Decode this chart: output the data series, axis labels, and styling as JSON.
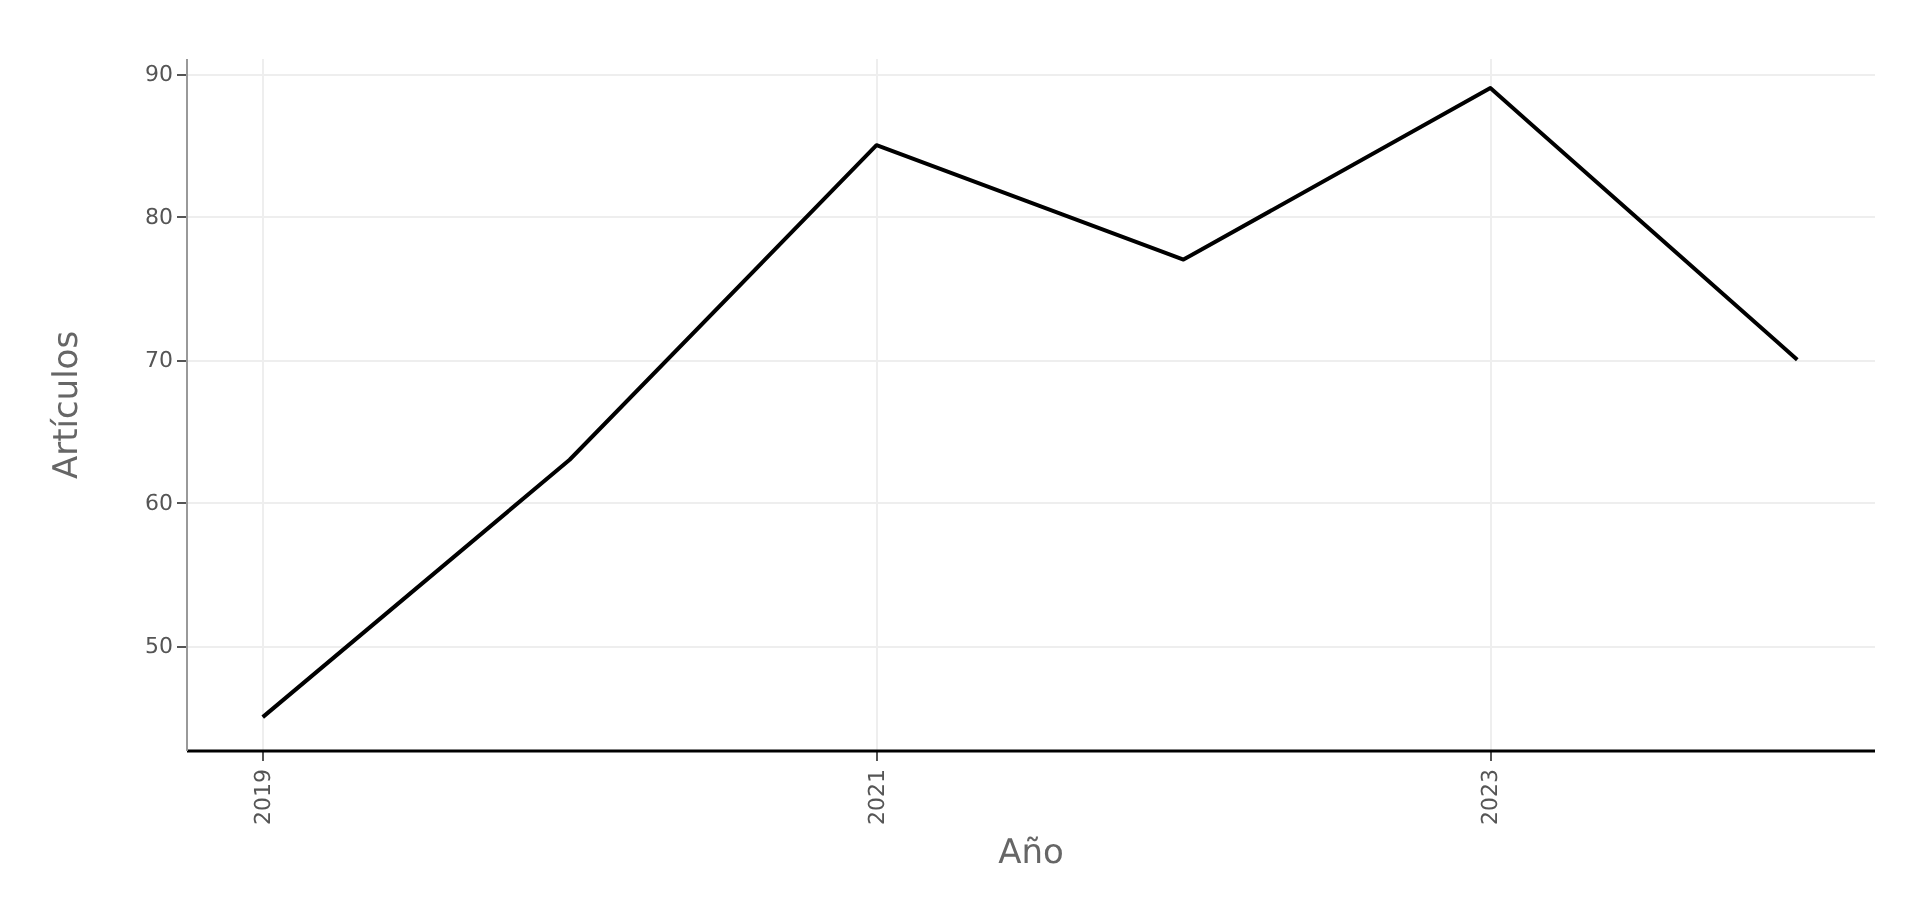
{
  "chart_data": {
    "type": "line",
    "xlabel": "Año",
    "ylabel": "Artículos",
    "x": [
      2019,
      2020,
      2021,
      2022,
      2023,
      2024
    ],
    "series": [
      {
        "color": "#000000",
        "values": [
          45,
          63,
          85,
          77,
          89,
          70
        ]
      }
    ],
    "xlim": [
      2018.75,
      2024.25
    ],
    "xticks": [
      2019,
      2021,
      2023
    ],
    "ylim": [
      42.7,
      91.1
    ],
    "yticks": [
      50,
      60,
      70,
      80,
      90
    ],
    "grid": true,
    "legend": false,
    "marker": "none",
    "line_style": "solid"
  }
}
